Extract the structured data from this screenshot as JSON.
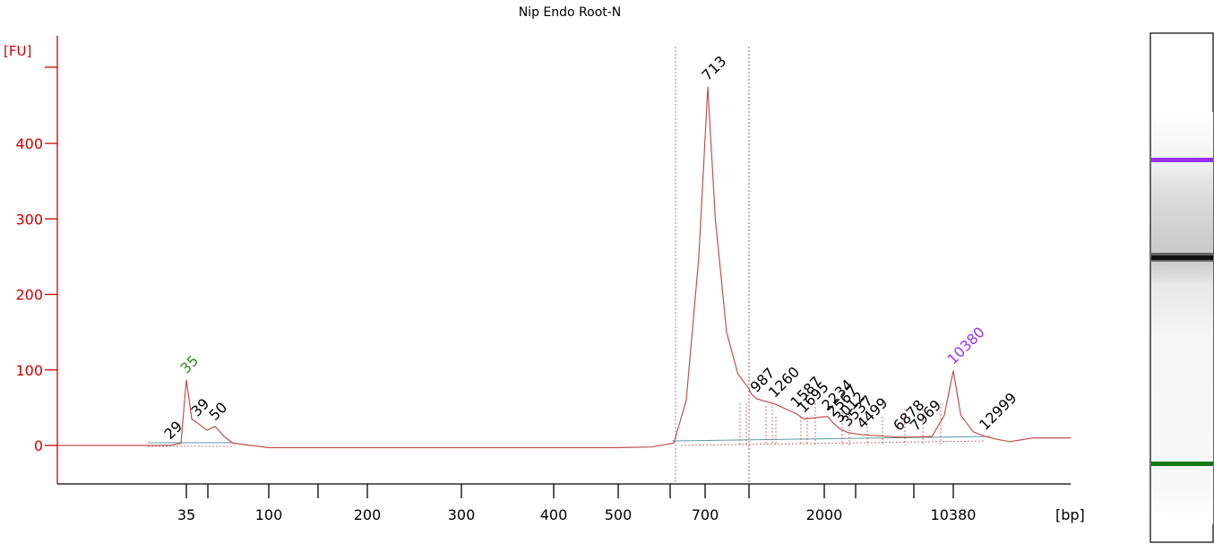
{
  "chart_data": {
    "type": "line",
    "title": "Nip Endo Root-N",
    "ylabel": "[FU]",
    "xlabel": "[bp]",
    "ylim": [
      -50,
      500
    ],
    "y_ticks": [
      0,
      100,
      200,
      300,
      400
    ],
    "x_ticks": [
      "35",
      "100",
      "200",
      "300",
      "400",
      "500",
      "700",
      "2000",
      "10380"
    ],
    "grid": false,
    "series": [
      {
        "color": "#c0504d",
        "x": [
          29,
          33,
          35,
          37,
          39,
          45,
          50,
          55,
          60,
          100,
          300,
          500,
          560,
          600,
          640,
          680,
          713,
          740,
          780,
          820,
          860,
          900,
          987,
          1260,
          1587,
          1695,
          2000,
          2234,
          2567,
          3012,
          3537,
          4499,
          6878,
          7969,
          9000,
          9800,
          10380,
          11000,
          12000,
          12999,
          14000,
          15000,
          17000
        ],
        "y": [
          0,
          3,
          87,
          35,
          30,
          20,
          25,
          12,
          3,
          -3,
          -3,
          -3,
          -2,
          3,
          60,
          250,
          475,
          300,
          150,
          95,
          75,
          68,
          62,
          55,
          42,
          35,
          38,
          38,
          30,
          22,
          17,
          14,
          11,
          11,
          12,
          40,
          99,
          40,
          18,
          12,
          8,
          5,
          10
        ]
      }
    ],
    "peak_labels": [
      {
        "x": 29,
        "label": "29",
        "color": "#000000"
      },
      {
        "x": 35,
        "label": "35",
        "color": "#2e8b1e"
      },
      {
        "x": 39,
        "label": "39",
        "color": "#000000"
      },
      {
        "x": 50,
        "label": "50",
        "color": "#000000"
      },
      {
        "x": 713,
        "label": "713",
        "color": "#000000"
      },
      {
        "x": 987,
        "label": "987",
        "color": "#000000"
      },
      {
        "x": 1260,
        "label": "1260",
        "color": "#000000"
      },
      {
        "x": 1587,
        "label": "1587",
        "color": "#000000"
      },
      {
        "x": 1695,
        "label": "1695",
        "color": "#000000"
      },
      {
        "x": 2234,
        "label": "2234",
        "color": "#000000"
      },
      {
        "x": 2567,
        "label": "2567",
        "color": "#000000"
      },
      {
        "x": 3012,
        "label": "3012",
        "color": "#000000"
      },
      {
        "x": 3537,
        "label": "3537",
        "color": "#000000"
      },
      {
        "x": 4499,
        "label": "4499",
        "color": "#000000"
      },
      {
        "x": 6878,
        "label": "6878",
        "color": "#000000"
      },
      {
        "x": 7969,
        "label": "7969",
        "color": "#000000"
      },
      {
        "x": 10380,
        "label": "10380",
        "color": "#9b30ff"
      },
      {
        "x": 12999,
        "label": "12999",
        "color": "#000000"
      }
    ],
    "region_markers_x": [
      600,
      860
    ],
    "gel_bands": [
      {
        "label": "10380",
        "color": "#9b30ff"
      },
      {
        "label": "713",
        "color": "#111111"
      },
      {
        "label": "35",
        "color": "#137a13"
      }
    ],
    "colors": {
      "axis": "#cc0000",
      "trace": "#c0504d",
      "lower_marker": "#2e8b1e",
      "upper_marker": "#9b30ff",
      "baseline": "#5b9aa0"
    }
  }
}
